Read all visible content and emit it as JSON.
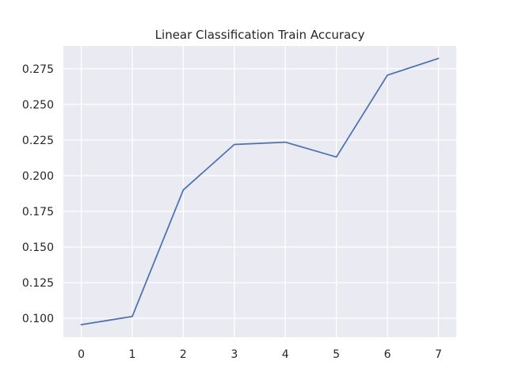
{
  "chart_data": {
    "type": "line",
    "title": "Linear Classification Train Accuracy",
    "xlabel": "",
    "ylabel": "",
    "x": [
      0,
      1,
      2,
      3,
      4,
      5,
      6,
      7
    ],
    "series": [
      {
        "values": [
          0.0955,
          0.1013,
          0.19,
          0.2219,
          0.2235,
          0.2131,
          0.2705,
          0.2822
        ],
        "color": "#4c72b0"
      }
    ],
    "xlim": [
      -0.35,
      7.35
    ],
    "ylim": [
      0.0867,
      0.291
    ],
    "xticks": [
      0,
      1,
      2,
      3,
      4,
      5,
      6,
      7
    ],
    "yticks": [
      0.1,
      0.125,
      0.15,
      0.175,
      0.2,
      0.225,
      0.25,
      0.275
    ],
    "ytick_labels": [
      "0.100",
      "0.125",
      "0.150",
      "0.175",
      "0.200",
      "0.225",
      "0.250",
      "0.275"
    ],
    "grid": true,
    "legend": "none",
    "style": {
      "background": "#eaeaf2",
      "grid_color": "#ffffff"
    }
  }
}
